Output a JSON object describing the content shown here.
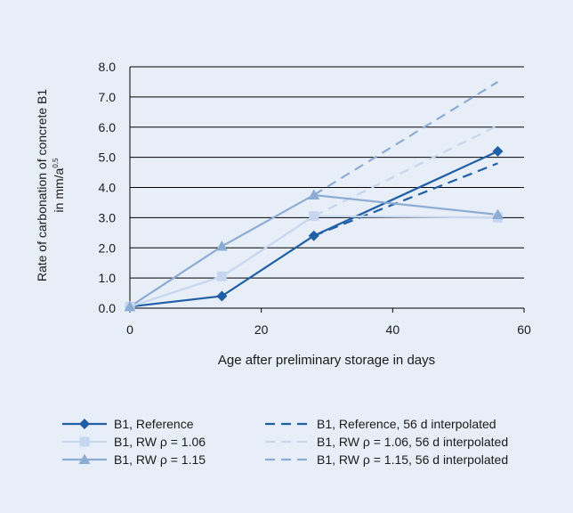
{
  "chart_data": {
    "type": "line",
    "title": "",
    "ylabel_line1": "Rate of carbonation of concrete B1",
    "ylabel_line2_prefix": "in mm/a",
    "ylabel_line2_sup": "0,5",
    "xlabel": "Age after preliminary storage in days",
    "xlim": [
      0,
      60
    ],
    "ylim": [
      0,
      8
    ],
    "xticks": [
      0,
      20,
      40,
      60
    ],
    "xtick_labels": [
      "0",
      "20",
      "40",
      "60"
    ],
    "yticks": [
      0,
      1,
      2,
      3,
      4,
      5,
      6,
      7,
      8
    ],
    "ytick_labels": [
      "0.0",
      "1.0",
      "2.0",
      "3.0",
      "4.0",
      "5.0",
      "6.0",
      "7.0",
      "8.0"
    ],
    "grid": "horizontal",
    "legend_position": "bottom",
    "series": [
      {
        "name": "B1, Reference",
        "color": "#1f5fa6",
        "dashed": false,
        "marker": "diamond",
        "x": [
          0,
          14,
          28,
          56
        ],
        "y": [
          0.05,
          0.4,
          2.4,
          5.2
        ]
      },
      {
        "name": "B1, RW ρ = 1.06",
        "color": "#c6d6ee",
        "dashed": false,
        "marker": "square",
        "x": [
          0,
          14,
          28,
          56
        ],
        "y": [
          0.05,
          1.05,
          3.05,
          3.0
        ]
      },
      {
        "name": "B1, RW ρ = 1.15",
        "color": "#8dacd4",
        "dashed": false,
        "marker": "triangle",
        "x": [
          0,
          14,
          28,
          56
        ],
        "y": [
          0.05,
          2.05,
          3.75,
          3.1
        ]
      },
      {
        "name": "B1, Reference, 56 d interpolated",
        "color": "#1f5fa6",
        "dashed": true,
        "marker": "none",
        "x": [
          28,
          56
        ],
        "y": [
          2.4,
          4.8
        ]
      },
      {
        "name": "B1, RW ρ = 1.06, 56 d interpolated",
        "color": "#c6d6ee",
        "dashed": true,
        "marker": "none",
        "x": [
          28,
          56
        ],
        "y": [
          3.05,
          6.05
        ]
      },
      {
        "name": "B1, RW ρ = 1.15, 56 d interpolated",
        "color": "#8dacd4",
        "dashed": true,
        "marker": "none",
        "x": [
          28,
          56
        ],
        "y": [
          3.75,
          7.5
        ]
      }
    ]
  }
}
